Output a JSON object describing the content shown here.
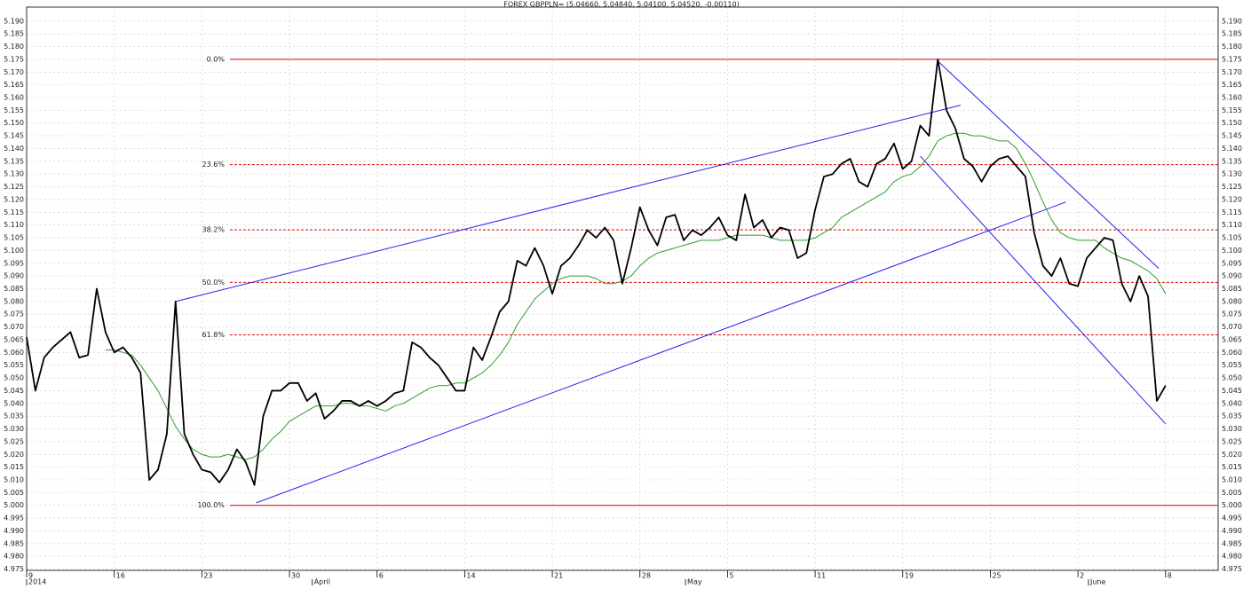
{
  "chart_data": {
    "type": "line",
    "title": "FOREX GBPPLN= (5.04660, 5.04840, 5.04100, 5.04520, -0.00110)",
    "x": [
      0,
      0.5,
      1,
      1.5,
      2,
      2.5,
      3,
      3.5,
      4,
      4.5,
      5,
      5.5,
      6,
      6.5,
      7,
      7.5,
      8,
      8.5,
      9,
      9.5,
      10,
      10.5,
      11,
      11.5,
      12,
      12.5,
      13,
      13.5,
      14,
      14.5,
      15,
      15.5,
      16,
      16.5,
      17,
      17.5,
      18,
      18.5,
      19,
      19.5,
      20,
      20.5,
      21,
      21.5,
      22,
      22.5,
      23,
      23.5,
      24,
      24.5,
      25,
      25.5,
      26,
      26.5,
      27,
      27.5,
      28,
      28.5,
      29,
      29.5,
      30,
      30.5,
      31,
      31.5,
      32,
      32.5,
      33,
      33.5,
      34,
      34.5,
      35,
      35.5,
      36,
      36.5,
      37,
      37.5,
      38,
      38.5,
      39,
      39.5,
      40,
      40.5,
      41,
      41.5,
      42,
      42.5,
      43,
      43.5,
      44,
      44.5,
      45,
      45.5,
      46,
      46.5,
      47,
      47.5,
      48,
      48.5,
      49,
      49.5,
      50,
      50.5,
      51,
      51.5,
      52,
      52.5,
      53,
      53.5,
      54,
      54.5,
      55,
      55.5,
      56,
      56.5,
      57,
      57.5,
      58,
      58.5,
      59,
      59.5,
      60,
      60.5,
      61,
      61.5,
      62,
      62.5,
      63,
      63.5,
      64,
      64.5,
      65
    ],
    "series": [
      {
        "color": "#000000",
        "line_width": 1.8,
        "values": [
          5.066,
          5.045,
          5.058,
          5.062,
          5.065,
          5.068,
          5.058,
          5.059,
          5.085,
          5.068,
          5.06,
          5.062,
          5.058,
          5.052,
          5.01,
          5.014,
          5.028,
          5.08,
          5.028,
          5.02,
          5.014,
          5.013,
          5.009,
          5.014,
          5.022,
          5.017,
          5.008,
          5.035,
          5.045,
          5.045,
          5.048,
          5.048,
          5.041,
          5.044,
          5.034,
          5.037,
          5.041,
          5.041,
          5.039,
          5.041,
          5.039,
          5.041,
          5.044,
          5.045,
          5.064,
          5.062,
          5.058,
          5.055,
          5.05,
          5.045,
          5.045,
          5.062,
          5.057,
          5.066,
          5.076,
          5.08,
          5.096,
          5.094,
          5.101,
          5.094,
          5.083,
          5.094,
          5.097,
          5.102,
          5.108,
          5.105,
          5.109,
          5.104,
          5.087,
          5.101,
          5.117,
          5.108,
          5.102,
          5.113,
          5.114,
          5.104,
          5.108,
          5.106,
          5.109,
          5.113,
          5.106,
          5.104,
          5.122,
          5.109,
          5.112,
          5.105,
          5.109,
          5.108,
          5.097,
          5.099,
          5.116,
          5.129,
          5.13,
          5.134,
          5.136,
          5.127,
          5.125,
          5.134,
          5.136,
          5.142,
          5.132,
          5.135,
          5.149,
          5.145,
          5.175,
          5.155,
          5.148,
          5.136,
          5.133,
          5.127,
          5.133,
          5.136,
          5.137,
          5.133,
          5.129,
          5.107,
          5.094,
          5.09,
          5.097,
          5.087,
          5.086,
          5.097,
          5.101,
          5.105,
          5.104,
          5.087,
          5.08,
          5.09,
          5.082,
          5.041,
          5.047
        ]
      },
      {
        "color": "#2e9e2e",
        "line_width": 1,
        "values": [
          null,
          null,
          null,
          null,
          null,
          null,
          null,
          null,
          null,
          5.061,
          5.061,
          5.06,
          5.059,
          5.055,
          5.05,
          5.045,
          5.038,
          5.031,
          5.026,
          5.022,
          5.02,
          5.019,
          5.019,
          5.02,
          5.019,
          5.018,
          5.019,
          5.022,
          5.026,
          5.029,
          5.033,
          5.035,
          5.037,
          5.039,
          5.039,
          5.039,
          5.04,
          5.04,
          5.039,
          5.039,
          5.038,
          5.037,
          5.039,
          5.04,
          5.042,
          5.044,
          5.046,
          5.047,
          5.047,
          5.048,
          5.048,
          5.05,
          5.052,
          5.055,
          5.059,
          5.064,
          5.071,
          5.076,
          5.081,
          5.084,
          5.087,
          5.089,
          5.09,
          5.09,
          5.09,
          5.089,
          5.087,
          5.087,
          5.088,
          5.09,
          5.094,
          5.097,
          5.099,
          5.1,
          5.101,
          5.102,
          5.103,
          5.104,
          5.104,
          5.104,
          5.105,
          5.106,
          5.106,
          5.106,
          5.106,
          5.105,
          5.104,
          5.104,
          5.104,
          5.104,
          5.105,
          5.107,
          5.109,
          5.113,
          5.115,
          5.117,
          5.119,
          5.121,
          5.123,
          5.127,
          5.129,
          5.13,
          5.133,
          5.137,
          5.143,
          5.145,
          5.146,
          5.146,
          5.145,
          5.145,
          5.144,
          5.143,
          5.143,
          5.14,
          5.134,
          5.127,
          5.119,
          5.112,
          5.107,
          5.105,
          5.104,
          5.104,
          5.104,
          5.101,
          5.099,
          5.097,
          5.096,
          5.094,
          5.092,
          5.089,
          5.083
        ]
      }
    ],
    "trend_lines": [
      {
        "color": "#2020ee",
        "x": [
          8.5,
          53.3
        ],
        "y": [
          5.08,
          5.157
        ]
      },
      {
        "color": "#2020ee",
        "x": [
          13.1,
          59.3
        ],
        "y": [
          5.001,
          5.119
        ]
      },
      {
        "color": "#2020ee",
        "x": [
          52.05,
          64.6
        ],
        "y": [
          5.174,
          5.093
        ]
      },
      {
        "color": "#2020ee",
        "x": [
          51.0,
          65.0
        ],
        "y": [
          5.137,
          5.032
        ]
      }
    ],
    "levels_color": "#e00000",
    "levels_from": 11.6,
    "levels": [
      {
        "label": "0.0%",
        "value": 5.175,
        "dashed": false
      },
      {
        "label": "23.6%",
        "value": 5.1337,
        "dashed": true
      },
      {
        "label": "38.2%",
        "value": 5.1081,
        "dashed": true
      },
      {
        "label": "50.0%",
        "value": 5.0875,
        "dashed": true
      },
      {
        "label": "61.8%",
        "value": 5.0669,
        "dashed": true
      },
      {
        "label": "100.0%",
        "value": 5.0,
        "dashed": false
      }
    ],
    "xlim": [
      0,
      68
    ],
    "xticks": [
      {
        "value": 0,
        "label": "9"
      },
      {
        "value": 5,
        "label": "16"
      },
      {
        "value": 10,
        "label": "23"
      },
      {
        "value": 15,
        "label": "30"
      },
      {
        "value": 20,
        "label": "6"
      },
      {
        "value": 25,
        "label": "14"
      },
      {
        "value": 30,
        "label": "21"
      },
      {
        "value": 35,
        "label": "28"
      },
      {
        "value": 40,
        "label": "5"
      },
      {
        "value": 45,
        "label": "11"
      },
      {
        "value": 50,
        "label": "19"
      },
      {
        "value": 55,
        "label": "25"
      },
      {
        "value": 60,
        "label": "2"
      },
      {
        "value": 65,
        "label": "8"
      }
    ],
    "period_labels": [
      {
        "value": 0,
        "label": "2014"
      },
      {
        "value": 16.3,
        "label": "April"
      },
      {
        "value": 37.6,
        "label": "May"
      },
      {
        "value": 60.6,
        "label": "June"
      }
    ],
    "ylim": [
      4.9745,
      5.1955
    ],
    "yticks": [
      4.975,
      {
        "value": 4.98,
        "label": "4.980"
      },
      4.985,
      {
        "value": 4.99,
        "label": "4.990"
      },
      4.995,
      {
        "value": 5,
        "label": "5.000"
      },
      5.005,
      {
        "value": 5.01,
        "label": "5.010"
      },
      5.015,
      {
        "value": 5.02,
        "label": "5.020"
      },
      5.025,
      {
        "value": 5.03,
        "label": "5.030"
      },
      5.035,
      {
        "value": 5.04,
        "label": "5.040"
      },
      5.045,
      {
        "value": 5.05,
        "label": "5.050"
      },
      5.055,
      {
        "value": 5.06,
        "label": "5.060"
      },
      5.065,
      {
        "value": 5.07,
        "label": "5.070"
      },
      5.075,
      {
        "value": 5.08,
        "label": "5.080"
      },
      5.085,
      {
        "value": 5.09,
        "label": "5.090"
      },
      5.095,
      {
        "value": 5.1,
        "label": "5.100"
      },
      5.105,
      {
        "value": 5.11,
        "label": "5.110"
      },
      5.115,
      {
        "value": 5.12,
        "label": "5.120"
      },
      5.125,
      {
        "value": 5.13,
        "label": "5.130"
      },
      5.135,
      {
        "value": 5.14,
        "label": "5.140"
      },
      5.145,
      {
        "value": 5.15,
        "label": "5.150"
      },
      5.155,
      {
        "value": 5.16,
        "label": "5.160"
      },
      5.165,
      {
        "value": 5.17,
        "label": "5.170"
      },
      5.175,
      {
        "value": 5.18,
        "label": "5.180"
      },
      5.185,
      {
        "value": 5.19,
        "label": "5.190"
      }
    ],
    "grid": true
  }
}
